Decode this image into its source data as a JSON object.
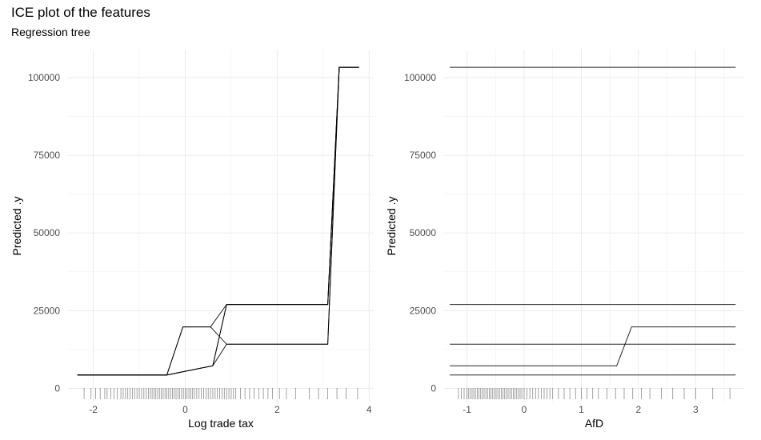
{
  "title": "ICE plot of the features",
  "subtitle": "Regression tree",
  "chart_data": [
    {
      "type": "line",
      "xlabel": "Log trade tax",
      "ylabel": "Predicted .y",
      "xlim": [
        -2.55,
        4.1
      ],
      "ylim": [
        -4500,
        109000
      ],
      "xticks": [
        -2,
        0,
        2,
        4
      ],
      "yticks": [
        0,
        25000,
        50000,
        75000,
        100000
      ],
      "ytick_labels": [
        "0",
        "25000",
        "50000",
        "75000",
        "100000"
      ],
      "grid": true,
      "series": [
        {
          "x": [
            -2.35,
            -0.4,
            0.6,
            0.9,
            3.1,
            3.35,
            3.78
          ],
          "y": [
            4300,
            4300,
            7300,
            14200,
            14200,
            103300,
            103300
          ]
        },
        {
          "x": [
            -2.35,
            -0.4,
            0.6,
            0.9,
            3.1,
            3.35,
            3.78
          ],
          "y": [
            4300,
            4300,
            7300,
            27000,
            27000,
            103300,
            103300
          ]
        },
        {
          "x": [
            -2.35,
            -0.4,
            -0.05,
            0.55,
            0.9,
            3.1,
            3.35,
            3.78
          ],
          "y": [
            4300,
            4300,
            19800,
            19800,
            14200,
            14200,
            103300,
            103300
          ]
        },
        {
          "x": [
            -2.35,
            -0.4,
            -0.05,
            0.55,
            0.9,
            3.1,
            3.35,
            3.78
          ],
          "y": [
            4300,
            4300,
            19800,
            19800,
            27000,
            27000,
            103300,
            103300
          ]
        },
        {
          "x": [
            -2.35,
            -0.4,
            0.6,
            0.9,
            3.1,
            3.35,
            3.78
          ],
          "y": [
            4300,
            4300,
            7300,
            27000,
            27000,
            103300,
            103300
          ]
        }
      ],
      "rug": [
        -2.2,
        -2.05,
        -1.95,
        -1.85,
        -1.75,
        -1.7,
        -1.62,
        -1.55,
        -1.48,
        -1.4,
        -1.35,
        -1.3,
        -1.25,
        -1.2,
        -1.15,
        -1.1,
        -1.05,
        -1.0,
        -0.95,
        -0.9,
        -0.85,
        -0.8,
        -0.76,
        -0.72,
        -0.68,
        -0.64,
        -0.6,
        -0.56,
        -0.52,
        -0.48,
        -0.44,
        -0.4,
        -0.36,
        -0.32,
        -0.28,
        -0.24,
        -0.2,
        -0.16,
        -0.12,
        -0.08,
        -0.04,
        0.0,
        0.04,
        0.08,
        0.12,
        0.16,
        0.2,
        0.25,
        0.3,
        0.35,
        0.4,
        0.45,
        0.5,
        0.55,
        0.6,
        0.65,
        0.7,
        0.75,
        0.8,
        0.85,
        0.9,
        0.95,
        1.0,
        1.05,
        1.1,
        1.2,
        1.3,
        1.4,
        1.5,
        1.6,
        1.7,
        1.8,
        1.9,
        2.05,
        2.2,
        2.4,
        2.7,
        2.9,
        3.1,
        3.3,
        3.5,
        3.75
      ]
    },
    {
      "type": "line",
      "xlabel": "AfD",
      "ylabel": "Predicted .y",
      "xlim": [
        -1.4,
        3.85
      ],
      "ylim": [
        -4500,
        109000
      ],
      "xticks": [
        -1,
        0,
        1,
        2,
        3
      ],
      "yticks": [
        0,
        25000,
        50000,
        75000,
        100000
      ],
      "ytick_labels": [
        "0",
        "25000",
        "50000",
        "75000",
        "100000"
      ],
      "grid": true,
      "series": [
        {
          "x": [
            -1.3,
            3.7
          ],
          "y": [
            103300,
            103300
          ]
        },
        {
          "x": [
            -1.3,
            3.7
          ],
          "y": [
            27000,
            27000
          ]
        },
        {
          "x": [
            -1.3,
            3.7
          ],
          "y": [
            14200,
            14200
          ]
        },
        {
          "x": [
            -1.3,
            1.62,
            1.88,
            3.7
          ],
          "y": [
            7300,
            7300,
            19800,
            19800
          ]
        },
        {
          "x": [
            -1.3,
            3.7
          ],
          "y": [
            4300,
            4300
          ]
        }
      ],
      "rug": [
        -1.15,
        -1.1,
        -1.05,
        -1.0,
        -0.97,
        -0.94,
        -0.91,
        -0.88,
        -0.85,
        -0.82,
        -0.79,
        -0.76,
        -0.73,
        -0.7,
        -0.67,
        -0.64,
        -0.61,
        -0.58,
        -0.55,
        -0.52,
        -0.49,
        -0.46,
        -0.43,
        -0.4,
        -0.37,
        -0.34,
        -0.31,
        -0.28,
        -0.25,
        -0.22,
        -0.19,
        -0.16,
        -0.13,
        -0.1,
        -0.07,
        -0.04,
        0.0,
        0.05,
        0.1,
        0.15,
        0.2,
        0.25,
        0.3,
        0.35,
        0.4,
        0.45,
        0.5,
        0.6,
        0.7,
        0.8,
        0.9,
        1.0,
        1.1,
        1.2,
        1.3,
        1.45,
        1.6,
        1.75,
        1.9,
        2.05,
        2.2,
        2.4,
        2.6,
        2.8,
        3.0,
        3.3,
        3.6
      ]
    }
  ]
}
